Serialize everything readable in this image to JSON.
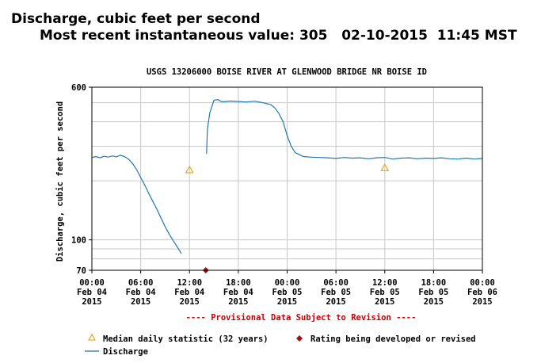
{
  "header": {
    "parameter": "Discharge, cubic feet per second",
    "recent_value": "Most recent instantaneous value: 305   02-10-2015  11:45 MST"
  },
  "chart_data": {
    "type": "line",
    "title": "USGS 13206000 BOISE RIVER AT GLENWOOD BRIDGE NR BOISE ID",
    "ylabel": "Discharge, cubic feet per second",
    "ylog": true,
    "ylim": [
      70,
      600
    ],
    "y_tick_labels": [
      "600",
      "100",
      "70"
    ],
    "x_range_hours": [
      0,
      48
    ],
    "x_tick_labels": [
      [
        "00:00",
        "Feb 04",
        "2015"
      ],
      [
        "06:00",
        "Feb 04",
        "2015"
      ],
      [
        "12:00",
        "Feb 04",
        "2015"
      ],
      [
        "18:00",
        "Feb 04",
        "2015"
      ],
      [
        "00:00",
        "Feb 05",
        "2015"
      ],
      [
        "06:00",
        "Feb 05",
        "2015"
      ],
      [
        "12:00",
        "Feb 05",
        "2015"
      ],
      [
        "18:00",
        "Feb 05",
        "2015"
      ],
      [
        "00:00",
        "Feb 06",
        "2015"
      ]
    ],
    "grid": true,
    "provisional_note": "---- Provisional Data Subject to Revision ----",
    "legend": {
      "median": "Median daily statistic (32 years)",
      "rating": "Rating being developed or revised",
      "discharge": "Discharge"
    },
    "colors": {
      "discharge": "#1f78b4",
      "median": "#e59a00",
      "rating": "#9b1313",
      "provisional": "#cc0000"
    },
    "series": [
      {
        "name": "Discharge",
        "segments": [
          [
            [
              0,
              263
            ],
            [
              0.5,
              266
            ],
            [
              1,
              262
            ],
            [
              1.5,
              267
            ],
            [
              2,
              264
            ],
            [
              2.5,
              268
            ],
            [
              3,
              265
            ],
            [
              3.5,
              270
            ],
            [
              4,
              266
            ],
            [
              4.5,
              258
            ],
            [
              5,
              245
            ],
            [
              5.5,
              228
            ],
            [
              6,
              208
            ],
            [
              6.5,
              190
            ],
            [
              7,
              172
            ],
            [
              7.5,
              157
            ],
            [
              8,
              143
            ],
            [
              8.5,
              129
            ],
            [
              9,
              117
            ],
            [
              9.5,
              107
            ],
            [
              10,
              99
            ],
            [
              10.5,
              92
            ],
            [
              11,
              85
            ]
          ],
          [
            [
              14.1,
              275
            ],
            [
              14.2,
              365
            ],
            [
              14.5,
              445
            ],
            [
              15,
              515
            ],
            [
              15.5,
              518
            ],
            [
              16,
              505
            ],
            [
              17,
              510
            ],
            [
              18,
              507
            ],
            [
              19,
              504
            ],
            [
              20,
              509
            ],
            [
              21,
              500
            ],
            [
              22,
              489
            ],
            [
              22.5,
              470
            ],
            [
              23,
              440
            ],
            [
              23.5,
              400
            ],
            [
              24,
              340
            ],
            [
              24.5,
              300
            ],
            [
              25,
              278
            ],
            [
              25.5,
              272
            ],
            [
              26,
              266
            ],
            [
              27,
              264
            ],
            [
              28,
              263
            ],
            [
              29,
              262
            ],
            [
              30,
              260
            ],
            [
              31,
              263
            ],
            [
              32,
              261
            ],
            [
              33,
              262
            ],
            [
              34,
              259
            ],
            [
              35,
              262
            ],
            [
              36,
              263
            ],
            [
              37,
              258
            ],
            [
              38,
              261
            ],
            [
              39,
              262
            ],
            [
              40,
              259
            ],
            [
              41,
              261
            ],
            [
              42,
              260
            ],
            [
              43,
              262
            ],
            [
              44,
              259
            ],
            [
              45,
              258
            ],
            [
              46,
              261
            ],
            [
              47,
              258
            ],
            [
              48,
              260
            ]
          ]
        ]
      }
    ],
    "median_points": [
      {
        "x": 12,
        "y": 228
      },
      {
        "x": 36,
        "y": 234
      }
    ],
    "rating_points": [
      {
        "x": 14,
        "y": 70
      }
    ]
  }
}
